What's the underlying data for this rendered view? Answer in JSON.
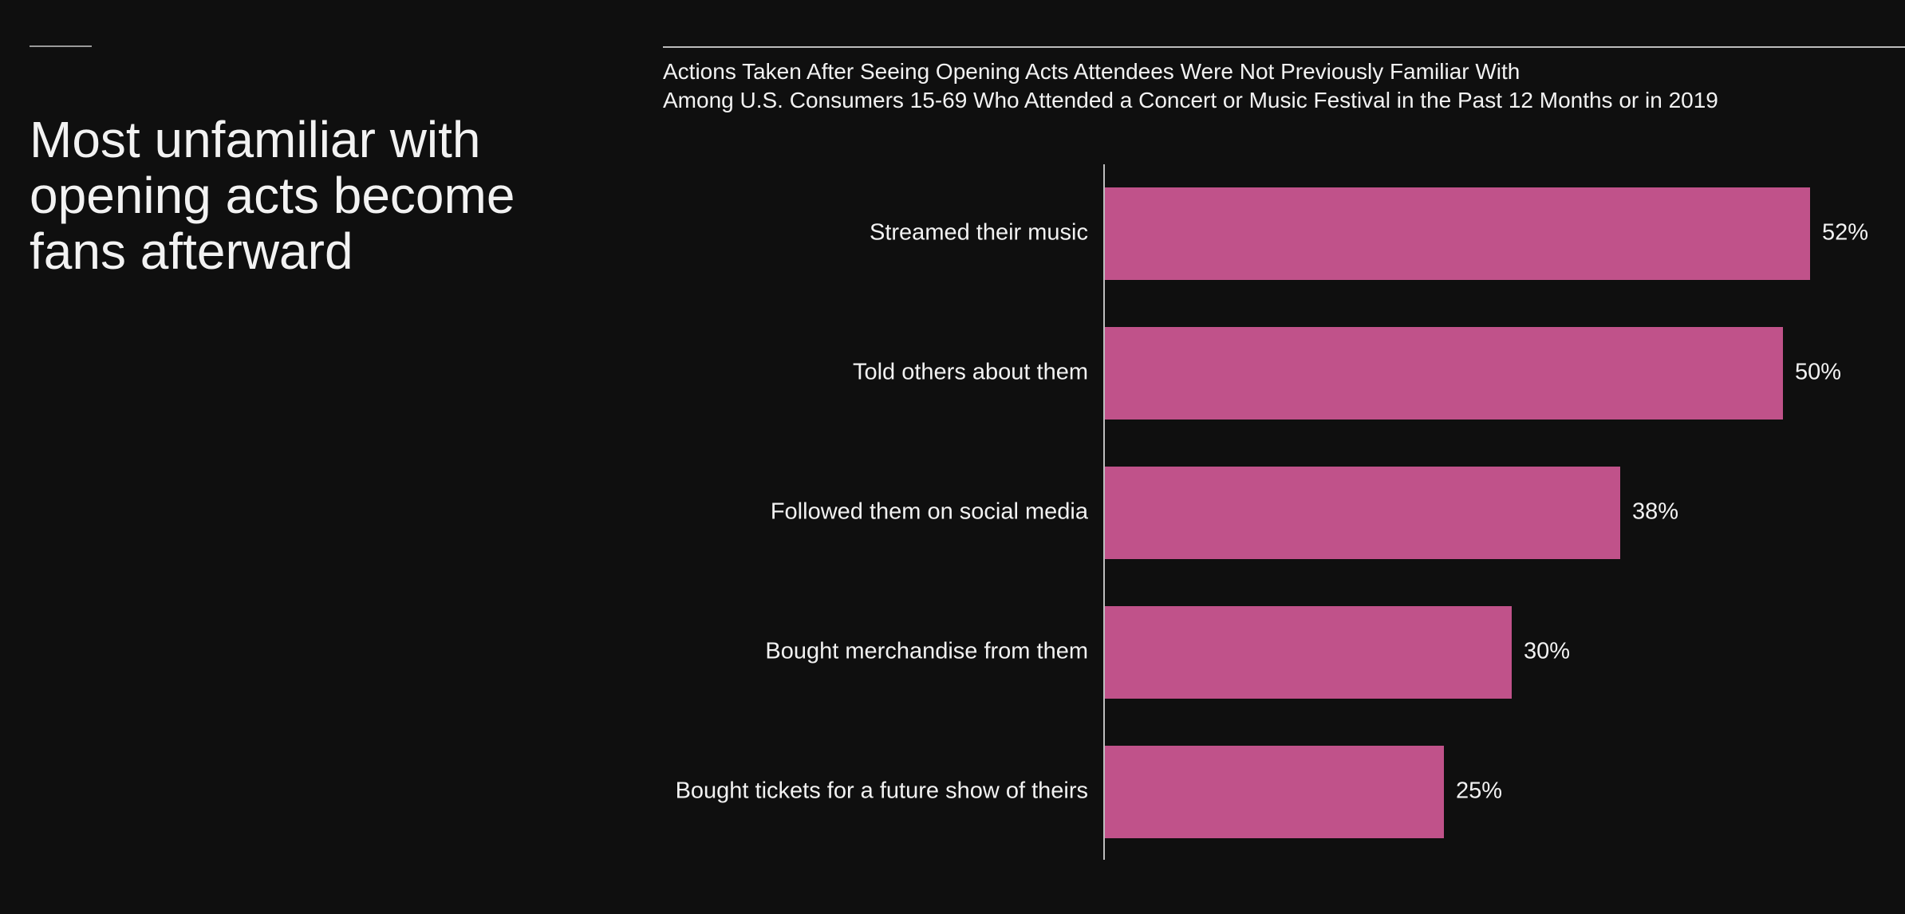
{
  "headline": "Most unfamiliar with opening acts become fans afterward",
  "colors": {
    "background": "#0f0f0f",
    "bar": "#c0528a",
    "text": "#f2f2f2",
    "axis": "#bdbdbd"
  },
  "chart_data": {
    "type": "bar",
    "orientation": "horizontal",
    "title": "Actions Taken After Seeing Opening Acts Attendees Were Not Previously Familiar With",
    "subtitle": "Among U.S. Consumers 15-69 Who Attended a Concert or Music Festival in the Past 12 Months or in 2019",
    "categories": [
      "Streamed their music",
      "Told others about them",
      "Followed them on social media",
      "Bought merchandise from them",
      "Bought tickets for a future show of theirs"
    ],
    "values": [
      52,
      50,
      38,
      30,
      25
    ],
    "value_labels": [
      "52%",
      "50%",
      "38%",
      "30%",
      "25%"
    ],
    "unit": "%",
    "xlim": [
      0,
      60
    ],
    "grid": false,
    "legend": "none"
  }
}
